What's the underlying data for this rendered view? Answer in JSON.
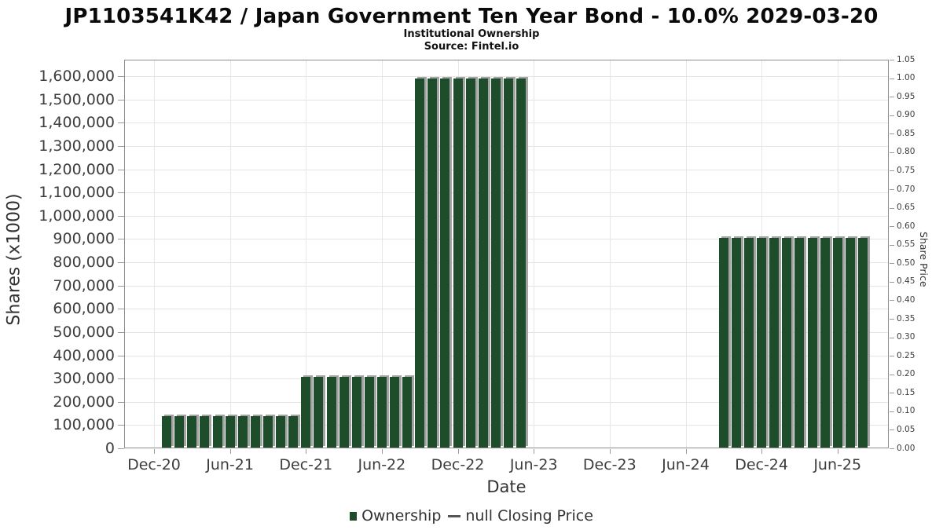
{
  "page": {
    "title": "JP1103541K42 / Japan Government Ten Year Bond - 10.0% 2029-03-20",
    "subtitle": "Institutional Ownership",
    "source": "Source: Fintel.io"
  },
  "colors": {
    "bar": "#1d4d2b",
    "bar_shadow": "#a3a3a3",
    "grid": "#e4e4e4",
    "plot_border": "#8c8c8c",
    "tick_text": "#3d3d3d",
    "legend_dash": "#555555"
  },
  "chart_data": {
    "type": "bar",
    "title": "JP1103541K42 / Japan Government Ten Year Bond - 10.0% 2029-03-20",
    "subtitle": "Institutional Ownership",
    "source": "Source: Fintel.io",
    "xlabel": "Date",
    "ylabel_left": "Shares (x1000)",
    "ylabel_right": "Share Price",
    "grid": true,
    "legend_position": "bottom-center",
    "ylim_left": [
      0,
      1670000
    ],
    "ylim_right": [
      0,
      1.05
    ],
    "x_tick_labels": [
      "Dec-20",
      "Jun-21",
      "Dec-21",
      "Jun-22",
      "Dec-22",
      "Jun-23",
      "Dec-23",
      "Jun-24",
      "Dec-24",
      "Jun-25"
    ],
    "y_tick_labels_left": [
      "0",
      "100,000",
      "200,000",
      "300,000",
      "400,000",
      "500,000",
      "600,000",
      "700,000",
      "800,000",
      "900,000",
      "1,000,000",
      "1,100,000",
      "1,200,000",
      "1,300,000",
      "1,400,000",
      "1,500,000",
      "1,600,000"
    ],
    "y_tick_labels_right": [
      "0.00",
      "0.05",
      "0.10",
      "0.15",
      "0.20",
      "0.25",
      "0.30",
      "0.35",
      "0.40",
      "0.45",
      "0.50",
      "0.55",
      "0.60",
      "0.65",
      "0.70",
      "0.75",
      "0.80",
      "0.85",
      "0.90",
      "0.95",
      "1.00",
      "1.05"
    ],
    "series": [
      {
        "name": "Ownership",
        "type": "bar",
        "color": "#1d4d2b",
        "points": [
          {
            "date": "Jan-21",
            "value": 140000
          },
          {
            "date": "Feb-21",
            "value": 140000
          },
          {
            "date": "Mar-21",
            "value": 140000
          },
          {
            "date": "Apr-21",
            "value": 140000
          },
          {
            "date": "May-21",
            "value": 140000
          },
          {
            "date": "Jun-21",
            "value": 140000
          },
          {
            "date": "Jul-21",
            "value": 140000
          },
          {
            "date": "Aug-21",
            "value": 140000
          },
          {
            "date": "Sep-21",
            "value": 140000
          },
          {
            "date": "Oct-21",
            "value": 140000
          },
          {
            "date": "Nov-21",
            "value": 140000
          },
          {
            "date": "Dec-21",
            "value": 307000
          },
          {
            "date": "Jan-22",
            "value": 307000
          },
          {
            "date": "Feb-22",
            "value": 307000
          },
          {
            "date": "Mar-22",
            "value": 307000
          },
          {
            "date": "Apr-22",
            "value": 307000
          },
          {
            "date": "May-22",
            "value": 307000
          },
          {
            "date": "Jun-22",
            "value": 307000
          },
          {
            "date": "Jul-22",
            "value": 307000
          },
          {
            "date": "Aug-22",
            "value": 307000
          },
          {
            "date": "Sep-22",
            "value": 1590000
          },
          {
            "date": "Oct-22",
            "value": 1590000
          },
          {
            "date": "Nov-22",
            "value": 1590000
          },
          {
            "date": "Dec-22",
            "value": 1590000
          },
          {
            "date": "Jan-23",
            "value": 1590000
          },
          {
            "date": "Feb-23",
            "value": 1590000
          },
          {
            "date": "Mar-23",
            "value": 1590000
          },
          {
            "date": "Apr-23",
            "value": 1590000
          },
          {
            "date": "May-23",
            "value": 1590000
          },
          {
            "date": "Sep-24",
            "value": 905000
          },
          {
            "date": "Oct-24",
            "value": 905000
          },
          {
            "date": "Nov-24",
            "value": 905000
          },
          {
            "date": "Dec-24",
            "value": 905000
          },
          {
            "date": "Jan-25",
            "value": 905000
          },
          {
            "date": "Feb-25",
            "value": 905000
          },
          {
            "date": "Mar-25",
            "value": 905000
          },
          {
            "date": "Apr-25",
            "value": 905000
          },
          {
            "date": "May-25",
            "value": 905000
          },
          {
            "date": "Jun-25",
            "value": 905000
          },
          {
            "date": "Jul-25",
            "value": 905000
          },
          {
            "date": "Aug-25",
            "value": 905000
          }
        ]
      },
      {
        "name": "null Closing Price",
        "type": "line",
        "color": "#555555",
        "points": []
      }
    ]
  },
  "legend": {
    "items": [
      {
        "label": "Ownership",
        "marker": "square"
      },
      {
        "label": "null Closing Price",
        "marker": "dash"
      }
    ]
  }
}
